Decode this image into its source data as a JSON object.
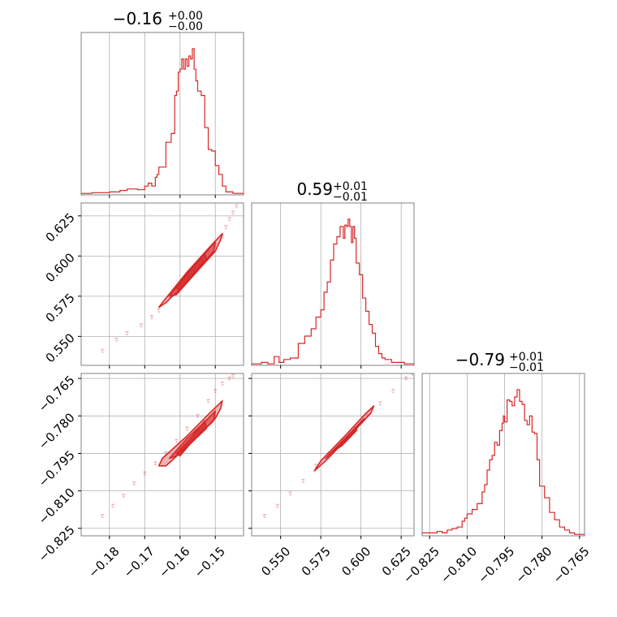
{
  "chart_data": {
    "type": "corner",
    "colors": {
      "series": "#d62728",
      "grid": "#b0b0b0",
      "axes": "#808080"
    },
    "grid": true,
    "params": [
      {
        "range": [
          -0.188,
          -0.142
        ],
        "ticks": [
          -0.18,
          -0.17,
          -0.16,
          -0.15
        ],
        "tick_labels": [
          "−0.18",
          "−0.17",
          "−0.16",
          "−0.15"
        ],
        "title": {
          "value": "−0.16",
          "upper": "+0.00",
          "lower": "−0.00"
        },
        "hist_edges": [
          -0.188,
          -0.185,
          -0.18,
          -0.177,
          -0.175,
          -0.172,
          -0.17,
          -0.169,
          -0.168,
          -0.167,
          -0.1665,
          -0.166,
          -0.165,
          -0.164,
          -0.1625,
          -0.1615,
          -0.161,
          -0.1605,
          -0.16,
          -0.1595,
          -0.159,
          -0.1585,
          -0.158,
          -0.1575,
          -0.157,
          -0.1565,
          -0.156,
          -0.1555,
          -0.155,
          -0.154,
          -0.153,
          -0.152,
          -0.151,
          -0.15,
          -0.149,
          -0.148,
          -0.147,
          -0.145,
          -0.142
        ],
        "hist_values": [
          0.01,
          0.015,
          0.02,
          0.03,
          0.04,
          0.035,
          0.06,
          0.08,
          0.06,
          0.12,
          0.14,
          0.19,
          0.19,
          0.36,
          0.42,
          0.68,
          0.71,
          0.84,
          0.86,
          0.93,
          0.86,
          0.93,
          0.88,
          0.95,
          0.93,
          1.0,
          0.86,
          0.78,
          0.71,
          0.68,
          0.46,
          0.31,
          0.3,
          0.2,
          0.14,
          0.06,
          0.02,
          0.01
        ]
      },
      {
        "range": [
          0.532,
          0.633
        ],
        "ticks": [
          0.55,
          0.575,
          0.6,
          0.625
        ],
        "tick_labels": [
          "0.550",
          "0.575",
          "0.600",
          "0.625"
        ],
        "title": {
          "value": "0.59",
          "upper": "+0.01",
          "lower": "−0.01"
        },
        "hist_edges": [
          0.532,
          0.538,
          0.542,
          0.546,
          0.549,
          0.552,
          0.556,
          0.561,
          0.565,
          0.569,
          0.572,
          0.575,
          0.577,
          0.579,
          0.581,
          0.583,
          0.585,
          0.587,
          0.588,
          0.589,
          0.59,
          0.591,
          0.592,
          0.593,
          0.594,
          0.595,
          0.596,
          0.597,
          0.599,
          0.601,
          0.603,
          0.605,
          0.607,
          0.609,
          0.611,
          0.613,
          0.615,
          0.619,
          0.623,
          0.627,
          0.633
        ],
        "hist_values": [
          0.01,
          0.02,
          0.01,
          0.06,
          0.02,
          0.04,
          0.05,
          0.15,
          0.2,
          0.25,
          0.33,
          0.38,
          0.5,
          0.57,
          0.72,
          0.83,
          0.88,
          0.95,
          0.95,
          0.87,
          0.96,
          0.95,
          1.0,
          0.95,
          0.84,
          0.95,
          0.87,
          0.7,
          0.62,
          0.46,
          0.37,
          0.28,
          0.22,
          0.13,
          0.08,
          0.05,
          0.04,
          0.02,
          0.02,
          0.01
        ]
      },
      {
        "range": [
          -0.828,
          -0.763
        ],
        "ticks": [
          -0.825,
          -0.81,
          -0.795,
          -0.78,
          -0.765
        ],
        "tick_labels": [
          "−0.825",
          "−0.810",
          "−0.795",
          "−0.780",
          "−0.765"
        ],
        "title": {
          "value": "−0.79",
          "upper": "+0.01",
          "lower": "−0.01"
        },
        "hist_edges": [
          -0.828,
          -0.825,
          -0.822,
          -0.82,
          -0.818,
          -0.816,
          -0.814,
          -0.812,
          -0.811,
          -0.81,
          -0.808,
          -0.806,
          -0.804,
          -0.803,
          -0.802,
          -0.801,
          -0.8,
          -0.799,
          -0.798,
          -0.797,
          -0.796,
          -0.7955,
          -0.795,
          -0.794,
          -0.793,
          -0.792,
          -0.791,
          -0.79,
          -0.789,
          -0.788,
          -0.787,
          -0.786,
          -0.785,
          -0.784,
          -0.783,
          -0.782,
          -0.781,
          -0.779,
          -0.777,
          -0.775,
          -0.773,
          -0.771,
          -0.769,
          -0.767,
          -0.763
        ],
        "hist_values": [
          0.02,
          0.02,
          0.03,
          0.02,
          0.04,
          0.05,
          0.06,
          0.1,
          0.12,
          0.15,
          0.18,
          0.22,
          0.3,
          0.35,
          0.45,
          0.52,
          0.55,
          0.64,
          0.62,
          0.72,
          0.77,
          0.82,
          0.78,
          0.93,
          0.92,
          0.89,
          0.95,
          1.0,
          0.92,
          0.9,
          0.79,
          0.76,
          0.82,
          0.71,
          0.7,
          0.52,
          0.34,
          0.26,
          0.16,
          0.11,
          0.06,
          0.04,
          0.02,
          0.01
        ]
      }
    ],
    "pairs": [
      {
        "x_param": 0,
        "y_param": 1,
        "slope": 1.0,
        "spread": 0.005,
        "cloud": [
          [
            -0.182,
            0.541
          ],
          [
            -0.178,
            0.548
          ],
          [
            -0.175,
            0.552
          ],
          [
            -0.171,
            0.557
          ],
          [
            -0.168,
            0.562
          ],
          [
            -0.166,
            0.566
          ],
          [
            -0.163,
            0.575
          ],
          [
            -0.161,
            0.58
          ],
          [
            -0.158,
            0.587
          ],
          [
            -0.156,
            0.592
          ],
          [
            -0.154,
            0.598
          ],
          [
            -0.152,
            0.602
          ],
          [
            -0.15,
            0.607
          ],
          [
            -0.148,
            0.612
          ],
          [
            -0.147,
            0.618
          ],
          [
            -0.146,
            0.623
          ],
          [
            -0.145,
            0.627
          ],
          [
            -0.144,
            0.631
          ]
        ],
        "contours": [
          [
            [
              -0.166,
              0.568
            ],
            [
              -0.165,
              0.571
            ],
            [
              -0.158,
              0.59
            ],
            [
              -0.151,
              0.607
            ],
            [
              -0.148,
              0.614
            ],
            [
              -0.1485,
              0.61
            ],
            [
              -0.15,
              0.603
            ],
            [
              -0.157,
              0.586
            ],
            [
              -0.164,
              0.571
            ],
            [
              -0.166,
              0.568
            ]
          ],
          [
            [
              -0.163,
              0.575
            ],
            [
              -0.158,
              0.589
            ],
            [
              -0.152,
              0.604
            ],
            [
              -0.15,
              0.609
            ],
            [
              -0.1505,
              0.603
            ],
            [
              -0.155,
              0.591
            ],
            [
              -0.161,
              0.576
            ],
            [
              -0.163,
              0.575
            ]
          ],
          [
            [
              -0.161,
              0.58
            ],
            [
              -0.157,
              0.592
            ],
            [
              -0.153,
              0.602
            ],
            [
              -0.1525,
              0.598
            ],
            [
              -0.157,
              0.587
            ],
            [
              -0.16,
              0.579
            ],
            [
              -0.161,
              0.58
            ]
          ]
        ]
      },
      {
        "x_param": 0,
        "y_param": 2,
        "cloud": [
          [
            -0.182,
            -0.82
          ],
          [
            -0.179,
            -0.816
          ],
          [
            -0.176,
            -0.812
          ],
          [
            -0.173,
            -0.807
          ],
          [
            -0.17,
            -0.803
          ],
          [
            -0.167,
            -0.799
          ],
          [
            -0.164,
            -0.795
          ],
          [
            -0.161,
            -0.79
          ],
          [
            -0.158,
            -0.785
          ],
          [
            -0.155,
            -0.78
          ],
          [
            -0.152,
            -0.774
          ],
          [
            -0.15,
            -0.77
          ],
          [
            -0.148,
            -0.767
          ],
          [
            -0.146,
            -0.765
          ],
          [
            -0.145,
            -0.764
          ]
        ],
        "contours": [
          [
            [
              -0.166,
              -0.8
            ],
            [
              -0.165,
              -0.797
            ],
            [
              -0.158,
              -0.788
            ],
            [
              -0.151,
              -0.778
            ],
            [
              -0.148,
              -0.774
            ],
            [
              -0.1485,
              -0.777
            ],
            [
              -0.15,
              -0.781
            ],
            [
              -0.157,
              -0.791
            ],
            [
              -0.164,
              -0.8
            ],
            [
              -0.166,
              -0.8
            ]
          ],
          [
            [
              -0.163,
              -0.797
            ],
            [
              -0.158,
              -0.789
            ],
            [
              -0.152,
              -0.781
            ],
            [
              -0.15,
              -0.778
            ],
            [
              -0.1505,
              -0.782
            ],
            [
              -0.155,
              -0.788
            ],
            [
              -0.161,
              -0.796
            ],
            [
              -0.163,
              -0.797
            ]
          ],
          [
            [
              -0.161,
              -0.795
            ],
            [
              -0.157,
              -0.789
            ],
            [
              -0.153,
              -0.782
            ],
            [
              -0.1525,
              -0.785
            ],
            [
              -0.157,
              -0.791
            ],
            [
              -0.16,
              -0.796
            ],
            [
              -0.161,
              -0.795
            ]
          ]
        ]
      },
      {
        "x_param": 1,
        "y_param": 2,
        "cloud": [
          [
            0.54,
            -0.82
          ],
          [
            0.548,
            -0.816
          ],
          [
            0.556,
            -0.811
          ],
          [
            0.564,
            -0.806
          ],
          [
            0.572,
            -0.8
          ],
          [
            0.58,
            -0.795
          ],
          [
            0.588,
            -0.79
          ],
          [
            0.596,
            -0.785
          ],
          [
            0.604,
            -0.78
          ],
          [
            0.612,
            -0.775
          ],
          [
            0.62,
            -0.77
          ],
          [
            0.628,
            -0.765
          ],
          [
            0.632,
            -0.763
          ]
        ],
        "contours": [
          [
            [
              0.571,
              -0.802
            ],
            [
              0.575,
              -0.798
            ],
            [
              0.59,
              -0.788
            ],
            [
              0.603,
              -0.779
            ],
            [
              0.608,
              -0.776
            ],
            [
              0.606,
              -0.779
            ],
            [
              0.59,
              -0.79
            ],
            [
              0.578,
              -0.798
            ],
            [
              0.571,
              -0.802
            ]
          ],
          [
            [
              0.578,
              -0.797
            ],
            [
              0.59,
              -0.789
            ],
            [
              0.602,
              -0.781
            ],
            [
              0.6,
              -0.783
            ],
            [
              0.588,
              -0.791
            ],
            [
              0.578,
              -0.797
            ]
          ],
          [
            [
              0.583,
              -0.794
            ],
            [
              0.592,
              -0.788
            ],
            [
              0.598,
              -0.784
            ],
            [
              0.597,
              -0.786
            ],
            [
              0.588,
              -0.792
            ],
            [
              0.583,
              -0.794
            ]
          ]
        ]
      }
    ]
  }
}
